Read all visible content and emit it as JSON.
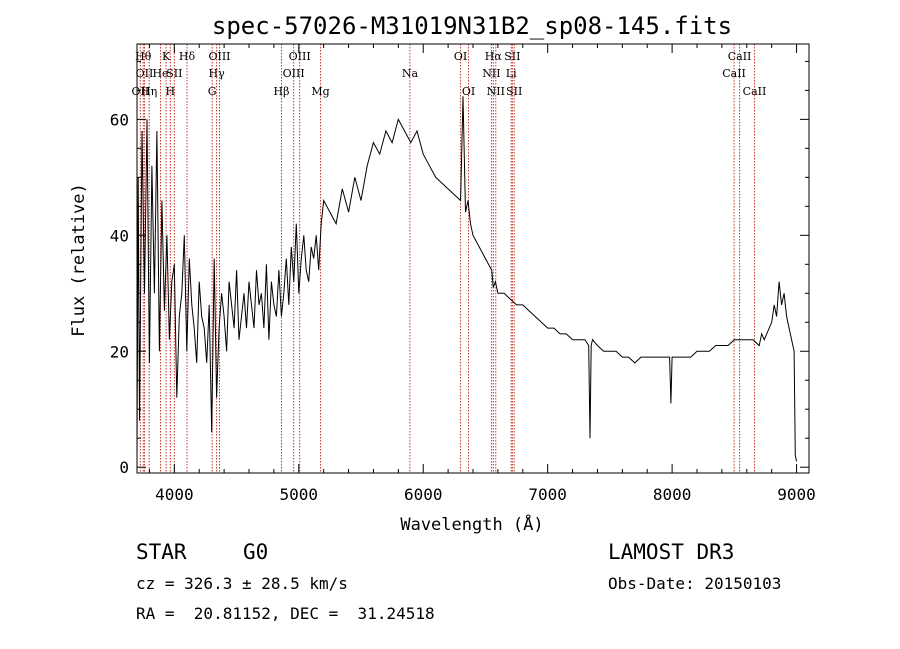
{
  "chart_data": {
    "type": "line",
    "title": "spec-57026-M31019N31B2_sp08-145.fits",
    "xlabel": "Wavelength (Å)",
    "ylabel": "Flux (relative)",
    "xlim": [
      3700,
      9100
    ],
    "ylim": [
      -1,
      73
    ],
    "xticks": [
      4000,
      5000,
      6000,
      7000,
      8000,
      9000
    ],
    "yticks": [
      0,
      20,
      40,
      60
    ],
    "series": [
      {
        "name": "spectrum",
        "x": [
          3700,
          3710,
          3720,
          3740,
          3760,
          3780,
          3800,
          3820,
          3840,
          3860,
          3880,
          3900,
          3920,
          3940,
          3960,
          3980,
          4000,
          4020,
          4040,
          4060,
          4080,
          4100,
          4120,
          4140,
          4160,
          4180,
          4200,
          4220,
          4240,
          4260,
          4280,
          4300,
          4320,
          4340,
          4360,
          4380,
          4400,
          4420,
          4440,
          4460,
          4480,
          4500,
          4520,
          4540,
          4560,
          4580,
          4600,
          4620,
          4640,
          4660,
          4680,
          4700,
          4720,
          4740,
          4760,
          4780,
          4800,
          4820,
          4840,
          4860,
          4880,
          4900,
          4920,
          4940,
          4960,
          4980,
          5000,
          5020,
          5040,
          5060,
          5080,
          5100,
          5120,
          5140,
          5160,
          5180,
          5200,
          5250,
          5300,
          5350,
          5400,
          5450,
          5500,
          5550,
          5600,
          5650,
          5700,
          5750,
          5800,
          5850,
          5900,
          5950,
          6000,
          6050,
          6100,
          6150,
          6200,
          6250,
          6300,
          6320,
          6340,
          6360,
          6380,
          6400,
          6450,
          6500,
          6550,
          6563,
          6580,
          6600,
          6650,
          6700,
          6750,
          6800,
          6850,
          6900,
          6950,
          7000,
          7050,
          7100,
          7150,
          7200,
          7250,
          7300,
          7330,
          7340,
          7350,
          7360,
          7400,
          7450,
          7500,
          7550,
          7600,
          7650,
          7700,
          7750,
          7800,
          7850,
          7900,
          7950,
          7980,
          7990,
          8000,
          8050,
          8100,
          8150,
          8200,
          8250,
          8300,
          8350,
          8400,
          8450,
          8500,
          8550,
          8600,
          8650,
          8700,
          8720,
          8740,
          8760,
          8780,
          8800,
          8820,
          8840,
          8860,
          8880,
          8900,
          8920,
          8940,
          8960,
          8980,
          8990,
          9000
        ],
        "values": [
          2,
          50,
          8,
          58,
          30,
          60,
          18,
          52,
          30,
          58,
          20,
          46,
          27,
          40,
          22,
          32,
          35,
          12,
          26,
          30,
          40,
          20,
          36,
          28,
          24,
          18,
          32,
          26,
          24,
          18,
          28,
          6,
          36,
          12,
          24,
          30,
          26,
          20,
          32,
          28,
          24,
          34,
          22,
          26,
          30,
          24,
          32,
          28,
          24,
          34,
          28,
          30,
          24,
          35,
          22,
          32,
          28,
          26,
          34,
          26,
          30,
          36,
          28,
          38,
          32,
          42,
          30,
          36,
          40,
          34,
          32,
          38,
          36,
          40,
          34,
          42,
          46,
          44,
          42,
          48,
          44,
          50,
          46,
          52,
          56,
          54,
          58,
          56,
          60,
          58,
          56,
          58,
          54,
          52,
          50,
          49,
          48,
          47,
          46,
          64,
          44,
          46,
          42,
          40,
          38,
          36,
          34,
          31,
          32,
          30,
          30,
          29,
          28,
          28,
          27,
          26,
          25,
          24,
          24,
          23,
          23,
          22,
          22,
          22,
          21,
          5,
          21,
          22,
          21,
          20,
          20,
          20,
          19,
          19,
          18,
          19,
          19,
          19,
          19,
          19,
          19,
          11,
          19,
          19,
          19,
          19,
          20,
          20,
          20,
          21,
          21,
          21,
          22,
          22,
          22,
          22,
          21,
          23,
          22,
          23,
          24,
          25,
          28,
          26,
          32,
          28,
          30,
          26,
          24,
          22,
          20,
          2,
          1
        ]
      }
    ]
  },
  "spectral_lines": [
    {
      "wave": 3727,
      "label": "OII",
      "row": 3
    },
    {
      "wave": 3750,
      "label": "Hθ",
      "row": 1
    },
    {
      "wave": 3760,
      "label": "OII",
      "row": 2
    },
    {
      "wave": 3798,
      "label": "Hη",
      "row": 3
    },
    {
      "wave": 3889,
      "label": "He",
      "row": 2
    },
    {
      "wave": 3934,
      "label": "K",
      "row": 1
    },
    {
      "wave": 3968,
      "label": "H",
      "row": 3
    },
    {
      "wave": 4000,
      "label": "SII",
      "row": 2
    },
    {
      "wave": 4102,
      "label": "Hδ",
      "row": 1
    },
    {
      "wave": 4304,
      "label": "G",
      "row": 3
    },
    {
      "wave": 4340,
      "label": "Hγ",
      "row": 2
    },
    {
      "wave": 4363,
      "label": "OIII",
      "row": 1
    },
    {
      "wave": 4861,
      "label": "Hβ",
      "row": 3
    },
    {
      "wave": 4959,
      "label": "OIII",
      "row": 2
    },
    {
      "wave": 5007,
      "label": "OIII",
      "row": 1
    },
    {
      "wave": 5175,
      "label": "Mg",
      "row": 3
    },
    {
      "wave": 5893,
      "label": "Na",
      "row": 2
    },
    {
      "wave": 6300,
      "label": "OI",
      "row": 1
    },
    {
      "wave": 6364,
      "label": "OI",
      "row": 3
    },
    {
      "wave": 6548,
      "label": "NII",
      "row": 2
    },
    {
      "wave": 6563,
      "label": "Hα",
      "row": 1
    },
    {
      "wave": 6583,
      "label": "NII",
      "row": 3
    },
    {
      "wave": 6707,
      "label": "Li",
      "row": 2
    },
    {
      "wave": 6716,
      "label": "SII",
      "row": 1
    },
    {
      "wave": 6731,
      "label": "SII",
      "row": 3
    },
    {
      "wave": 8498,
      "label": "CaII",
      "row": 2
    },
    {
      "wave": 8542,
      "label": "CaII",
      "row": 1
    },
    {
      "wave": 8662,
      "label": "CaII",
      "row": 3
    }
  ],
  "info": {
    "class": "STAR",
    "subclass": "G0",
    "survey": "LAMOST DR3",
    "cz": "cz = 326.3 ± 28.5 km/s",
    "obs_date": "Obs-Date: 20150103",
    "coords": "RA =  20.81152, DEC =  31.24518"
  },
  "colors": {
    "line_marker": "#c0392b",
    "spectrum": "#000000"
  }
}
